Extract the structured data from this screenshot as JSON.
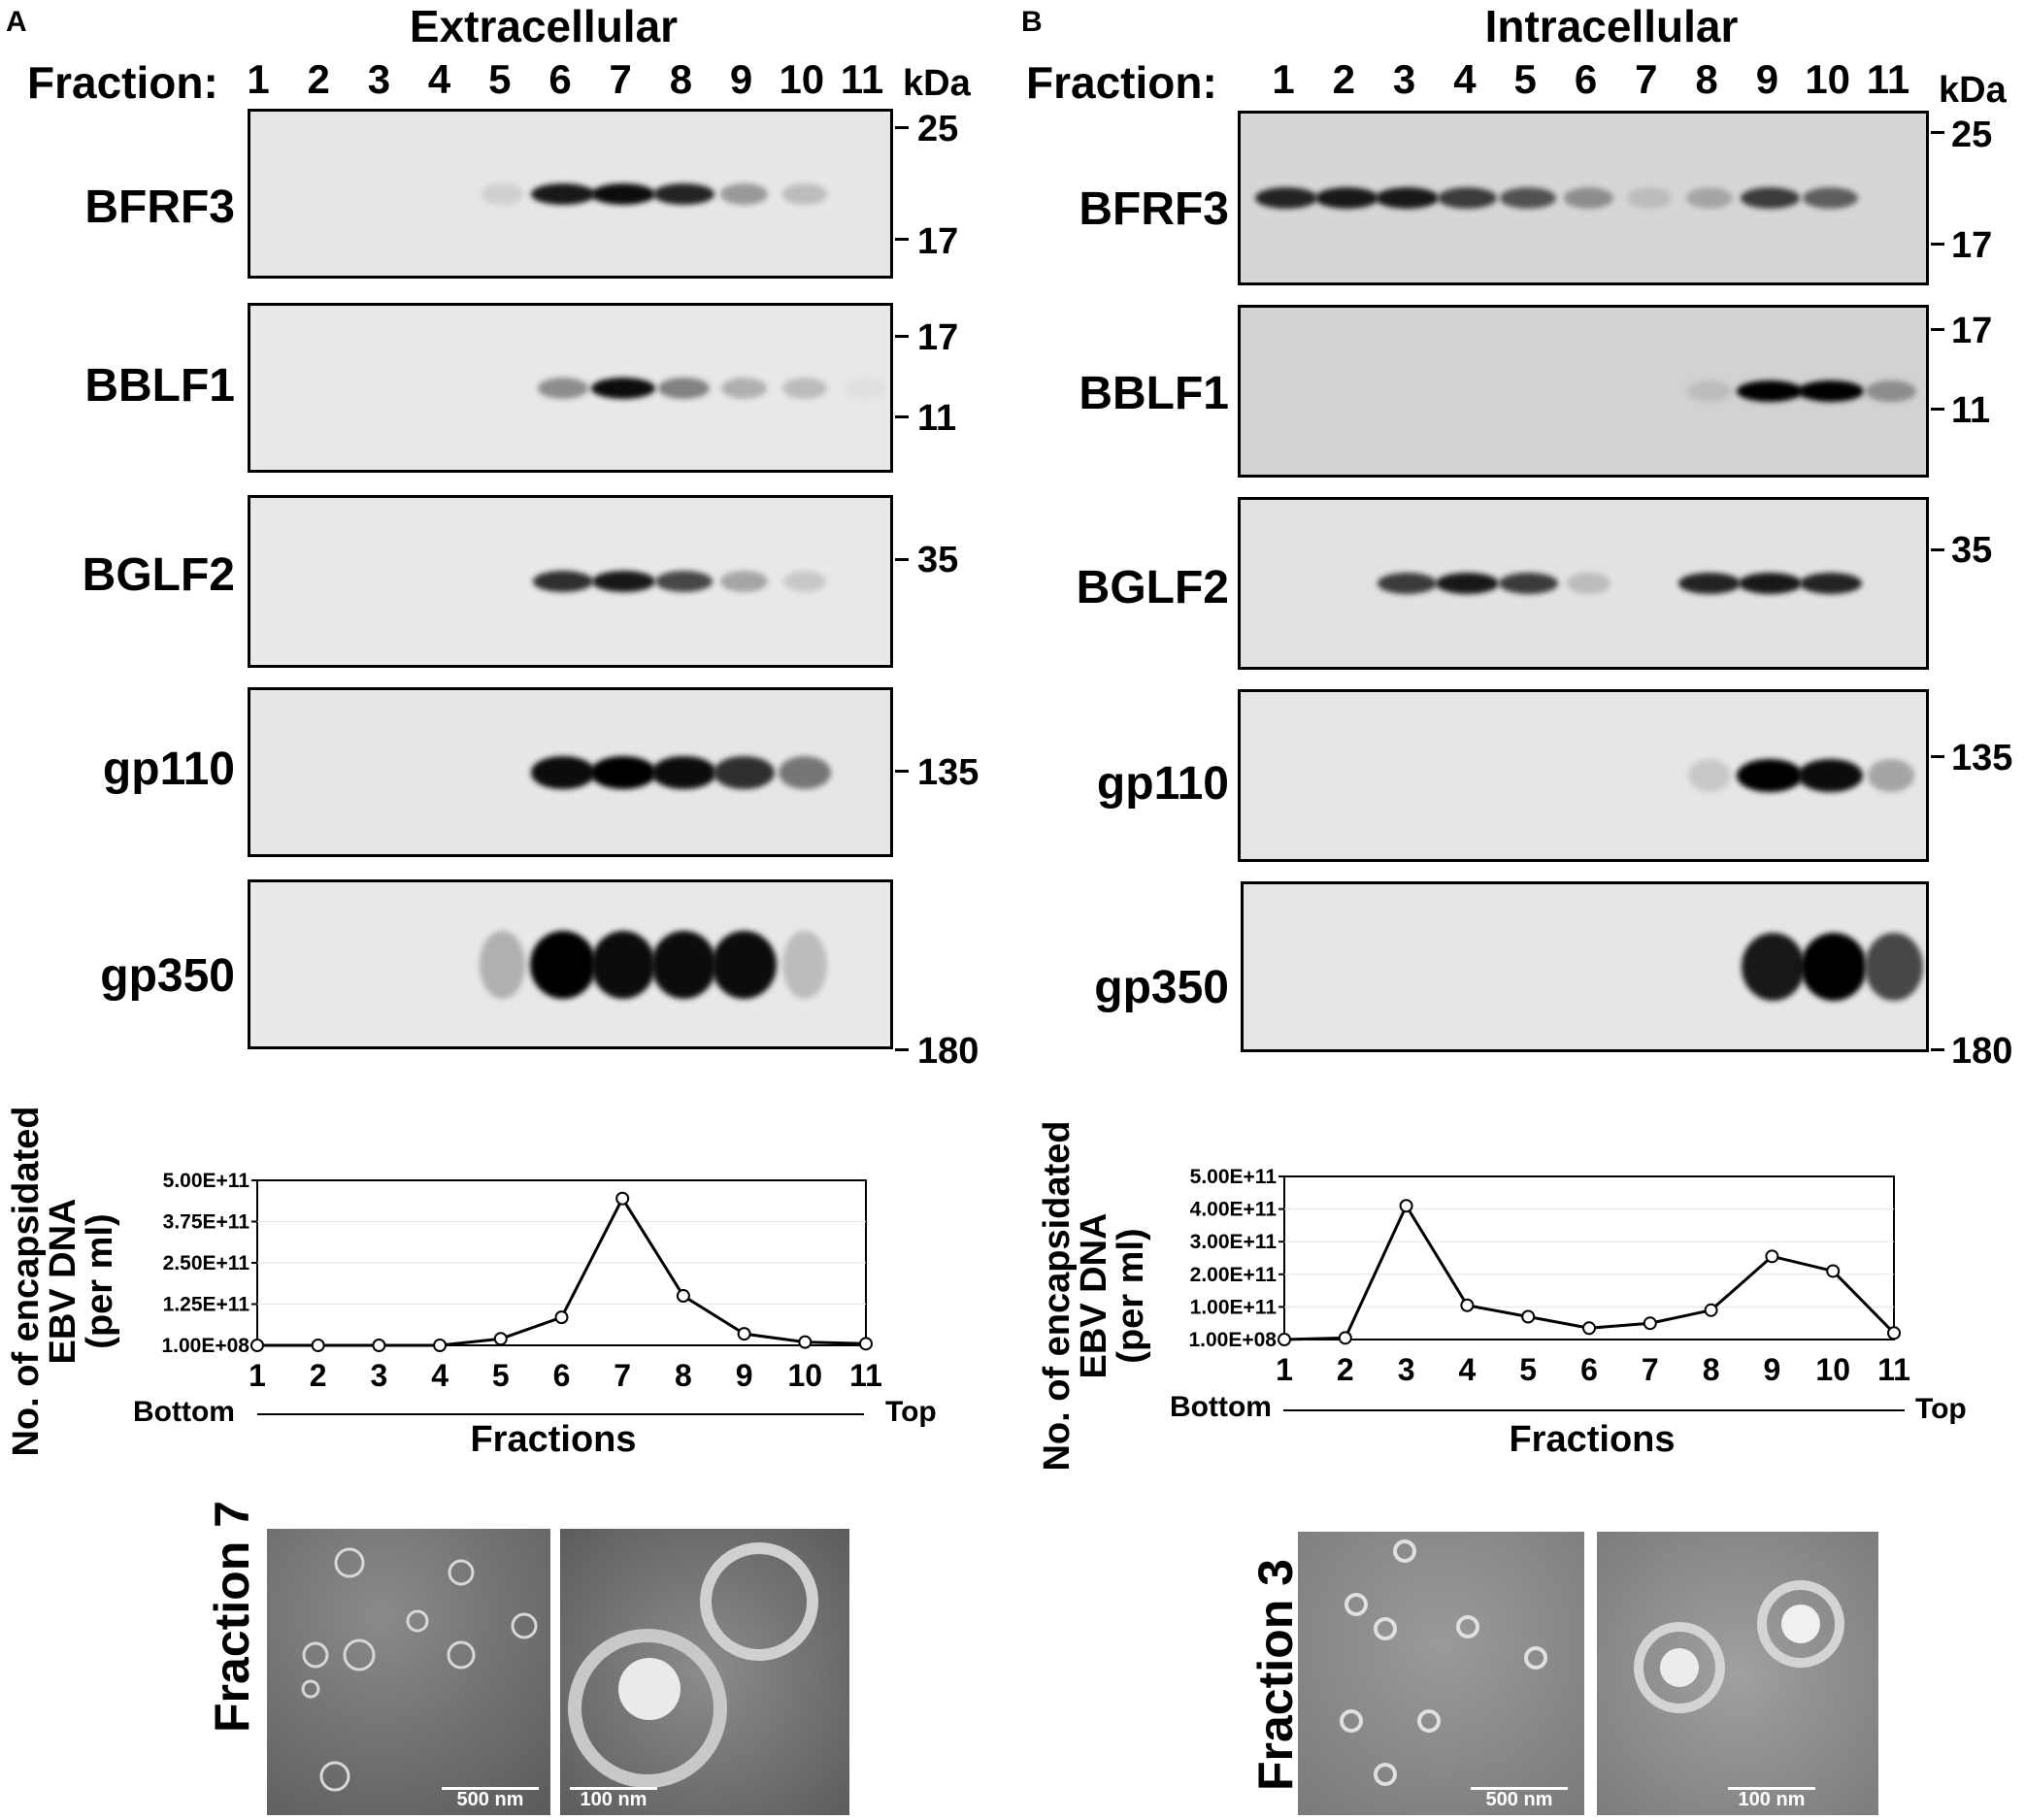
{
  "panels": {
    "A": {
      "letter": "A",
      "title": "Extracellular",
      "fraction_label": "Fraction:",
      "lanes": [
        "1",
        "2",
        "3",
        "4",
        "5",
        "6",
        "7",
        "8",
        "9",
        "10",
        "11"
      ],
      "kda_label": "kDa",
      "blots": [
        {
          "protein": "BFRF3",
          "markers": [
            "25",
            "17"
          ]
        },
        {
          "protein": "BBLF1",
          "markers": [
            "17",
            "11"
          ]
        },
        {
          "protein": "BGLF2",
          "markers": [
            "35"
          ]
        },
        {
          "protein": "gp110",
          "markers": [
            "135"
          ]
        },
        {
          "protein": "gp350",
          "markers": [
            "180"
          ]
        }
      ],
      "chart_ylabel": [
        "No. of encapsidated",
        "EBV DNA",
        "(per ml)"
      ],
      "chart_xlabel": "Fractions",
      "bottom_label": "Bottom",
      "top_label": "Top",
      "em_fraction": "Fraction 7",
      "em_scale": [
        "500 nm",
        "100 nm"
      ]
    },
    "B": {
      "letter": "B",
      "title": "Intracellular",
      "fraction_label": "Fraction:",
      "lanes": [
        "1",
        "2",
        "3",
        "4",
        "5",
        "6",
        "7",
        "8",
        "9",
        "10",
        "11"
      ],
      "kda_label": "kDa",
      "blots": [
        {
          "protein": "BFRF3",
          "markers": [
            "25",
            "17"
          ]
        },
        {
          "protein": "BBLF1",
          "markers": [
            "17",
            "11"
          ]
        },
        {
          "protein": "BGLF2",
          "markers": [
            "35"
          ]
        },
        {
          "protein": "gp110",
          "markers": [
            "135"
          ]
        },
        {
          "protein": "gp350",
          "markers": [
            "180"
          ]
        }
      ],
      "chart_ylabel": [
        "No. of encapsidated",
        "EBV DNA",
        "(per ml)"
      ],
      "chart_xlabel": "Fractions",
      "bottom_label": "Bottom",
      "top_label": "Top",
      "em_fraction": "Fraction 3",
      "em_scale": [
        "500 nm",
        "100 nm"
      ]
    }
  },
  "chart_data": [
    {
      "type": "line",
      "title": "",
      "xlabel": "Fractions",
      "ylabel": "No. of encapsidated EBV DNA (per ml)",
      "x": [
        1,
        2,
        3,
        4,
        5,
        6,
        7,
        8,
        9,
        10,
        11
      ],
      "y_tick_labels": [
        "1.00E+08",
        "1.25E+11",
        "2.50E+11",
        "3.75E+11",
        "5.00E+11"
      ],
      "ylim": [
        100000000,
        500000000000
      ],
      "series": [
        {
          "values": [
            100000000.0,
            100000000.0,
            100000000.0,
            100000000.0,
            20000000000.0,
            85000000000.0,
            445000000000.0,
            150000000000.0,
            35000000000.0,
            10000000000.0,
            5000000000.0
          ]
        }
      ]
    },
    {
      "type": "line",
      "title": "",
      "xlabel": "Fractions",
      "ylabel": "No. of encapsidated EBV DNA (per ml)",
      "x": [
        1,
        2,
        3,
        4,
        5,
        6,
        7,
        8,
        9,
        10,
        11
      ],
      "y_tick_labels": [
        "1.00E+08",
        "1.00E+11",
        "2.00E+11",
        "3.00E+11",
        "4.00E+11",
        "5.00E+11"
      ],
      "ylim": [
        100000000,
        500000000000
      ],
      "series": [
        {
          "values": [
            100000000.0,
            5000000000.0,
            410000000000.0,
            105000000000.0,
            70000000000.0,
            35000000000.0,
            50000000000.0,
            90000000000.0,
            255000000000.0,
            210000000000.0,
            20000000000.0
          ]
        }
      ]
    }
  ],
  "band_levels": {
    "A": {
      "BFRF3": [
        0,
        0,
        0,
        0,
        0.12,
        0.9,
        0.95,
        0.85,
        0.35,
        0.2,
        0
      ],
      "BBLF1": [
        0,
        0,
        0,
        0,
        0,
        0.4,
        0.95,
        0.45,
        0.25,
        0.2,
        0.05
      ],
      "BGLF2": [
        0,
        0,
        0,
        0,
        0,
        0.8,
        0.9,
        0.7,
        0.3,
        0.15,
        0
      ],
      "gp110": [
        0,
        0,
        0,
        0,
        0,
        0.95,
        1,
        0.95,
        0.8,
        0.5,
        0
      ],
      "gp350": [
        0,
        0,
        0,
        0,
        0.25,
        1,
        0.95,
        0.95,
        0.95,
        0.2,
        0
      ]
    },
    "B": {
      "BFRF3": [
        0.85,
        0.9,
        0.9,
        0.75,
        0.65,
        0.4,
        0.2,
        0.3,
        0.75,
        0.6,
        0
      ],
      "BBLF1": [
        0,
        0,
        0,
        0,
        0,
        0,
        0,
        0.2,
        1,
        1,
        0.4
      ],
      "BGLF2": [
        0,
        0,
        0.75,
        0.9,
        0.75,
        0.2,
        0,
        0.85,
        0.9,
        0.85,
        0
      ],
      "gp110": [
        0,
        0,
        0,
        0,
        0,
        0,
        0,
        0.15,
        1,
        0.95,
        0.3
      ],
      "gp350": [
        0,
        0,
        0,
        0,
        0,
        0,
        0,
        0,
        0.9,
        1,
        0.7
      ]
    }
  }
}
